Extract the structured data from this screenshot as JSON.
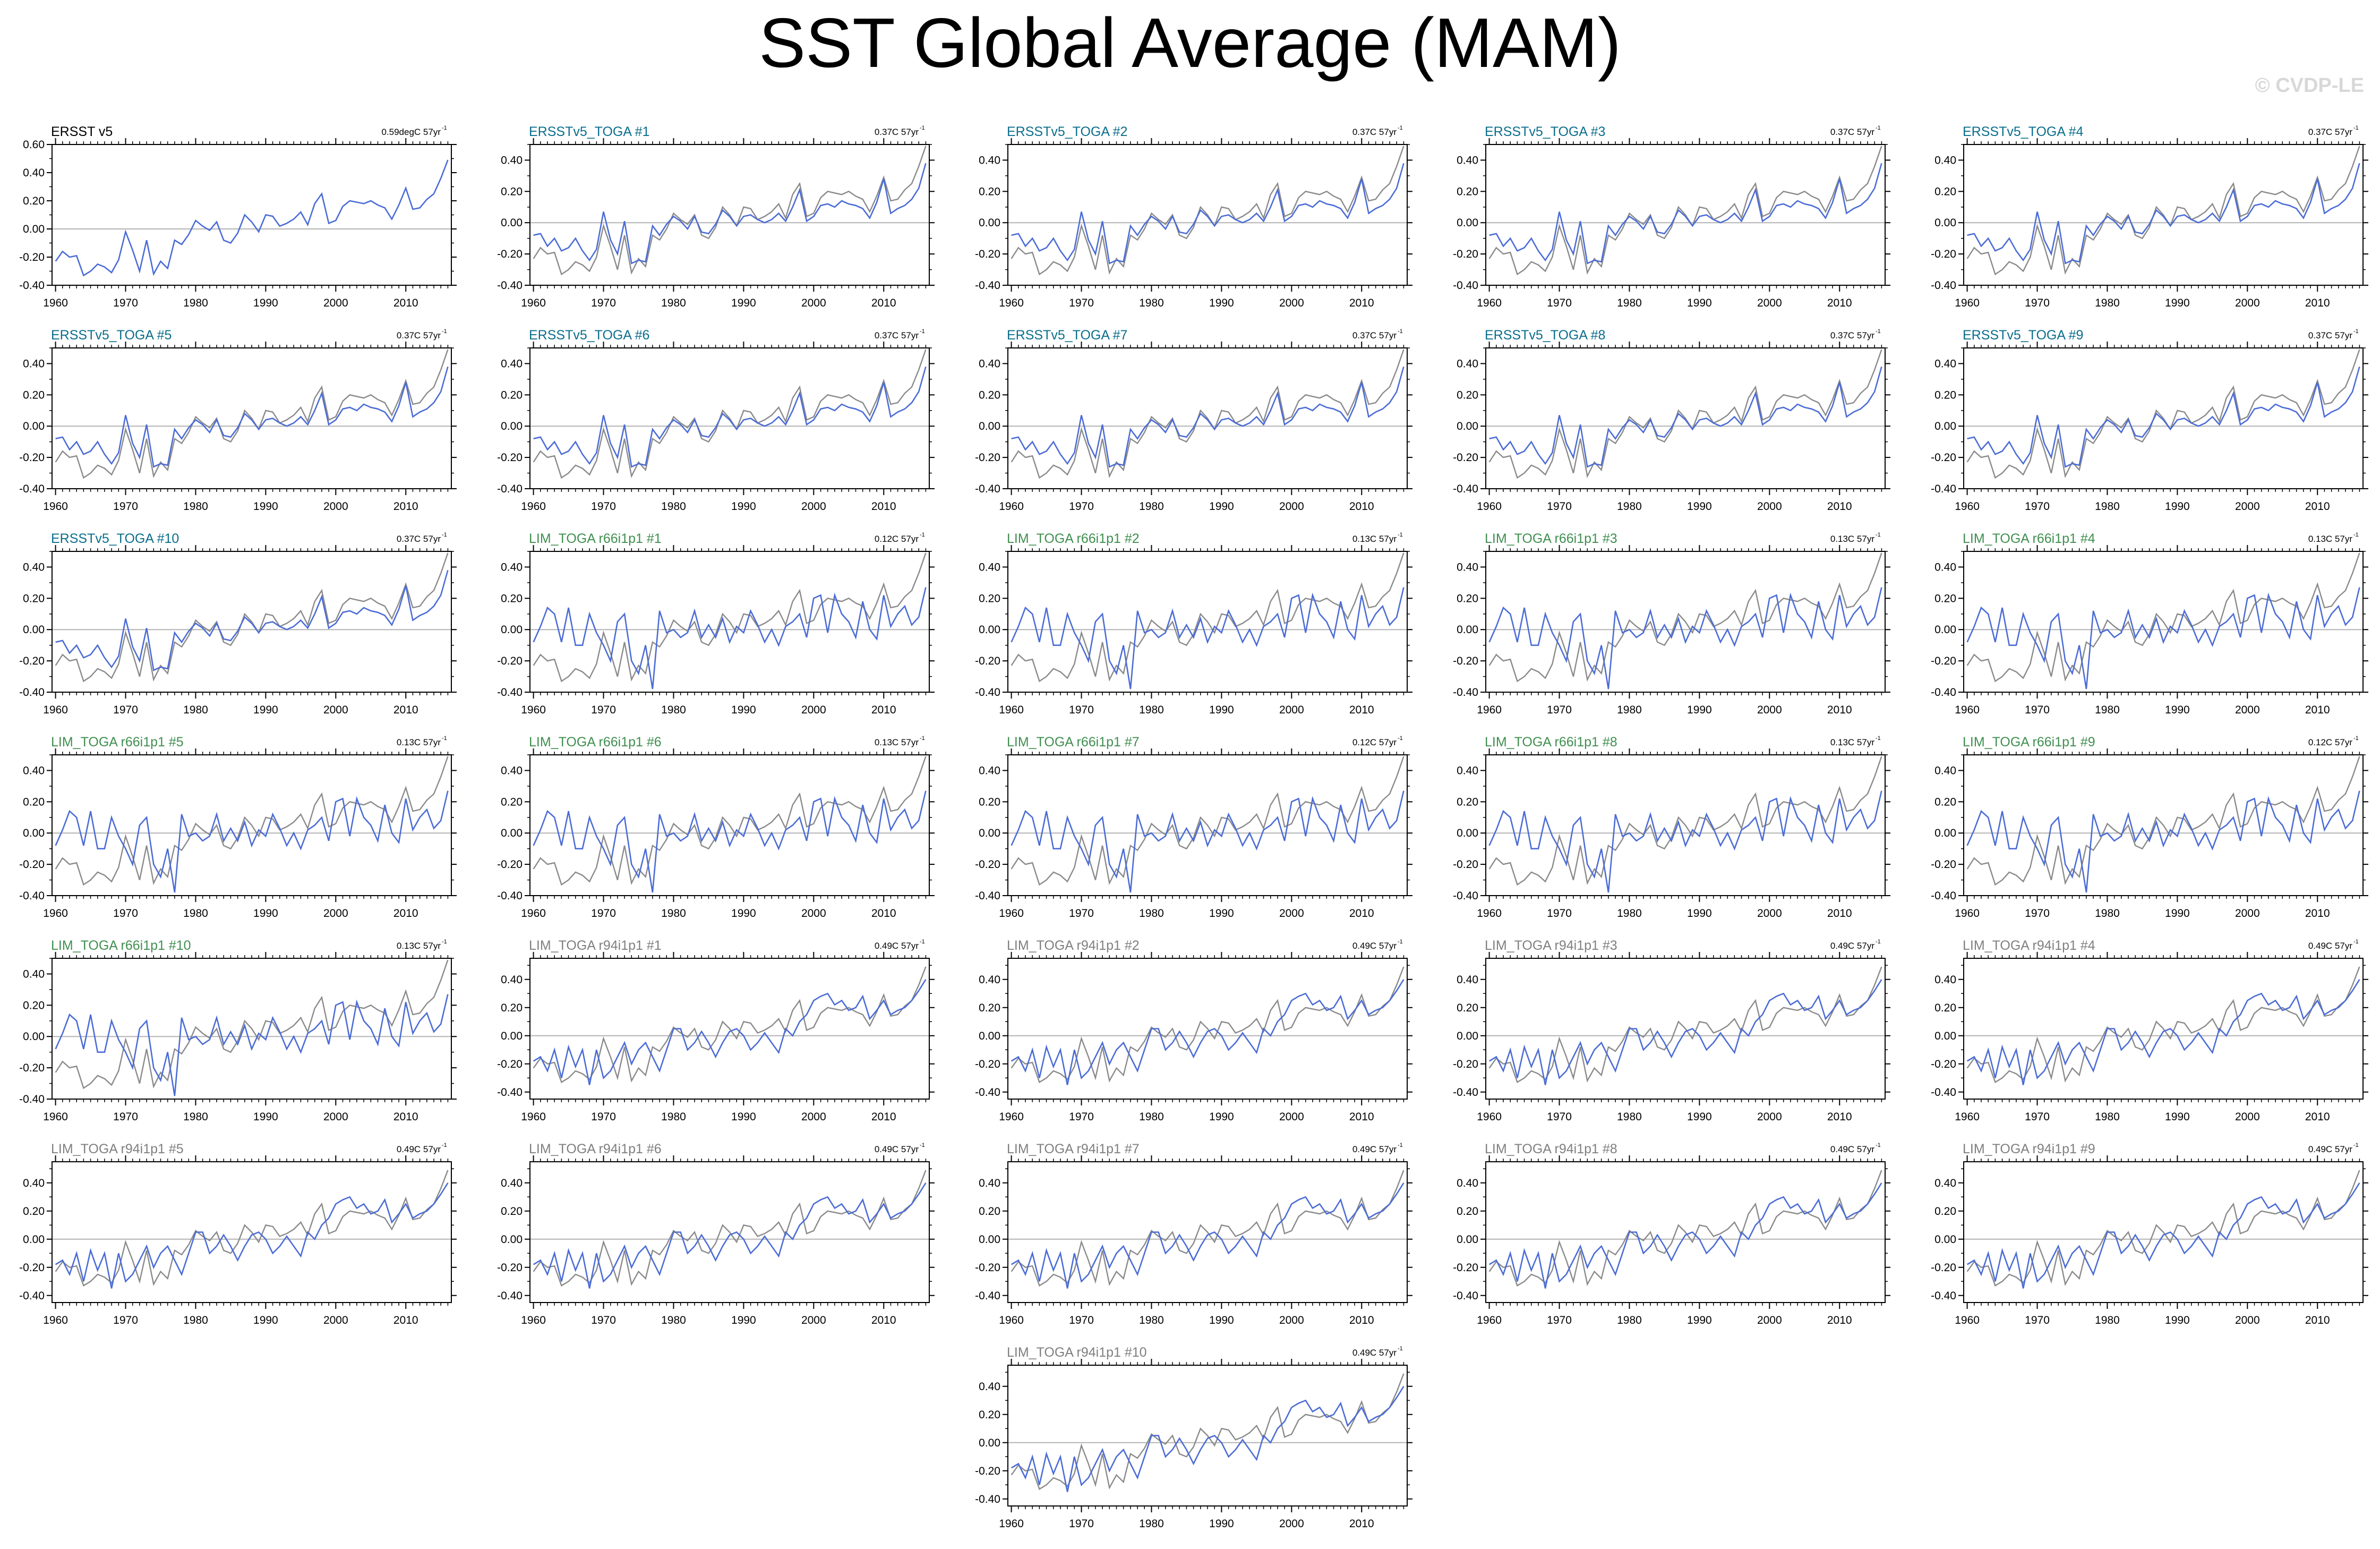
{
  "title": "SST Global Average (MAM)",
  "watermark": "© CVDP-LE",
  "colors": {
    "member_line": "#4b6cd6",
    "obs_overlay_line": "#8a8a8a",
    "obs_line": "#4b6cd6",
    "title_obs": "#000000",
    "title_ersst_toga": "#0a6e8c",
    "title_lim_r66": "#3f8f4f",
    "title_lim_r94": "#7f7f7f",
    "zero_line": "#b3b3b3",
    "axis": "#000000"
  },
  "chart_data": {
    "type": "line",
    "x": [
      1960,
      1961,
      1962,
      1963,
      1964,
      1965,
      1966,
      1967,
      1968,
      1969,
      1970,
      1971,
      1972,
      1973,
      1974,
      1975,
      1976,
      1977,
      1978,
      1979,
      1980,
      1981,
      1982,
      1983,
      1984,
      1985,
      1986,
      1987,
      1988,
      1989,
      1990,
      1991,
      1992,
      1993,
      1994,
      1995,
      1996,
      1997,
      1998,
      1999,
      2000,
      2001,
      2002,
      2003,
      2004,
      2005,
      2006,
      2007,
      2008,
      2009,
      2010,
      2011,
      2012,
      2013,
      2014,
      2015,
      2016
    ],
    "xticks": [
      "1960",
      "1970",
      "1980",
      "1990",
      "2000",
      "2010"
    ],
    "observed": {
      "name": "ERSST v5",
      "values": [
        -0.23,
        -0.16,
        -0.2,
        -0.19,
        -0.33,
        -0.3,
        -0.25,
        -0.27,
        -0.31,
        -0.22,
        -0.02,
        -0.15,
        -0.3,
        -0.08,
        -0.32,
        -0.23,
        -0.28,
        -0.08,
        -0.11,
        -0.04,
        0.06,
        0.02,
        -0.01,
        0.05,
        -0.08,
        -0.1,
        -0.03,
        0.1,
        0.05,
        -0.02,
        0.1,
        0.09,
        0.02,
        0.04,
        0.07,
        0.12,
        0.03,
        0.18,
        0.25,
        0.04,
        0.06,
        0.16,
        0.2,
        0.19,
        0.18,
        0.2,
        0.17,
        0.15,
        0.07,
        0.17,
        0.29,
        0.14,
        0.15,
        0.21,
        0.25,
        0.36,
        0.49
      ]
    },
    "panels": [
      {
        "label": "ERSST v5",
        "trend": "0.59degC 57yr",
        "group": "obs",
        "yticks": [
          "0.60",
          "0.40",
          "0.20",
          "0.00",
          "-0.20",
          "-0.40"
        ],
        "ylim": [
          -0.4,
          0.6
        ]
      },
      {
        "label": "ERSSTv5_TOGA #1",
        "trend": "0.37C 57yr",
        "group": "ersst_toga",
        "yticks": [
          "0.40",
          "0.20",
          "0.00",
          "-0.20",
          "-0.40"
        ],
        "ylim": [
          -0.4,
          0.5
        ]
      },
      {
        "label": "ERSSTv5_TOGA #2",
        "trend": "0.37C 57yr",
        "group": "ersst_toga",
        "yticks": [
          "0.40",
          "0.20",
          "0.00",
          "-0.20",
          "-0.40"
        ],
        "ylim": [
          -0.4,
          0.5
        ]
      },
      {
        "label": "ERSSTv5_TOGA #3",
        "trend": "0.37C 57yr",
        "group": "ersst_toga",
        "yticks": [
          "0.40",
          "0.20",
          "0.00",
          "-0.20",
          "-0.40"
        ],
        "ylim": [
          -0.4,
          0.5
        ]
      },
      {
        "label": "ERSSTv5_TOGA #4",
        "trend": "0.37C 57yr",
        "group": "ersst_toga",
        "yticks": [
          "0.40",
          "0.20",
          "0.00",
          "-0.20",
          "-0.40"
        ],
        "ylim": [
          -0.4,
          0.5
        ]
      },
      {
        "label": "ERSSTv5_TOGA #5",
        "trend": "0.37C 57yr",
        "group": "ersst_toga",
        "yticks": [
          "0.40",
          "0.20",
          "0.00",
          "-0.20",
          "-0.40"
        ],
        "ylim": [
          -0.4,
          0.5
        ]
      },
      {
        "label": "ERSSTv5_TOGA #6",
        "trend": "0.37C 57yr",
        "group": "ersst_toga",
        "yticks": [
          "0.40",
          "0.20",
          "0.00",
          "-0.20",
          "-0.40"
        ],
        "ylim": [
          -0.4,
          0.5
        ]
      },
      {
        "label": "ERSSTv5_TOGA #7",
        "trend": "0.37C 57yr",
        "group": "ersst_toga",
        "yticks": [
          "0.40",
          "0.20",
          "0.00",
          "-0.20",
          "-0.40"
        ],
        "ylim": [
          -0.4,
          0.5
        ]
      },
      {
        "label": "ERSSTv5_TOGA #8",
        "trend": "0.37C 57yr",
        "group": "ersst_toga",
        "yticks": [
          "0.40",
          "0.20",
          "0.00",
          "-0.20",
          "-0.40"
        ],
        "ylim": [
          -0.4,
          0.5
        ]
      },
      {
        "label": "ERSSTv5_TOGA #9",
        "trend": "0.37C 57yr",
        "group": "ersst_toga",
        "yticks": [
          "0.40",
          "0.20",
          "0.00",
          "-0.20",
          "-0.40"
        ],
        "ylim": [
          -0.4,
          0.5
        ]
      },
      {
        "label": "ERSSTv5_TOGA #10",
        "trend": "0.37C 57yr",
        "group": "ersst_toga",
        "yticks": [
          "0.40",
          "0.20",
          "0.00",
          "-0.20",
          "-0.40"
        ],
        "ylim": [
          -0.4,
          0.5
        ]
      },
      {
        "label": "LIM_TOGA r66i1p1 #1",
        "trend": "0.12C 57yr",
        "group": "lim_r66",
        "yticks": [
          "0.40",
          "0.20",
          "0.00",
          "-0.20",
          "-0.40"
        ],
        "ylim": [
          -0.4,
          0.5
        ]
      },
      {
        "label": "LIM_TOGA r66i1p1 #2",
        "trend": "0.13C 57yr",
        "group": "lim_r66",
        "yticks": [
          "0.40",
          "0.20",
          "0.00",
          "-0.20",
          "-0.40"
        ],
        "ylim": [
          -0.4,
          0.5
        ]
      },
      {
        "label": "LIM_TOGA r66i1p1 #3",
        "trend": "0.13C 57yr",
        "group": "lim_r66",
        "yticks": [
          "0.40",
          "0.20",
          "0.00",
          "-0.20",
          "-0.40"
        ],
        "ylim": [
          -0.4,
          0.5
        ]
      },
      {
        "label": "LIM_TOGA r66i1p1 #4",
        "trend": "0.13C 57yr",
        "group": "lim_r66",
        "yticks": [
          "0.40",
          "0.20",
          "0.00",
          "-0.20",
          "-0.40"
        ],
        "ylim": [
          -0.4,
          0.5
        ]
      },
      {
        "label": "LIM_TOGA r66i1p1 #5",
        "trend": "0.13C 57yr",
        "group": "lim_r66",
        "yticks": [
          "0.40",
          "0.20",
          "0.00",
          "-0.20",
          "-0.40"
        ],
        "ylim": [
          -0.4,
          0.5
        ]
      },
      {
        "label": "LIM_TOGA r66i1p1 #6",
        "trend": "0.13C 57yr",
        "group": "lim_r66",
        "yticks": [
          "0.40",
          "0.20",
          "0.00",
          "-0.20",
          "-0.40"
        ],
        "ylim": [
          -0.4,
          0.5
        ]
      },
      {
        "label": "LIM_TOGA r66i1p1 #7",
        "trend": "0.12C 57yr",
        "group": "lim_r66",
        "yticks": [
          "0.40",
          "0.20",
          "0.00",
          "-0.20",
          "-0.40"
        ],
        "ylim": [
          -0.4,
          0.5
        ]
      },
      {
        "label": "LIM_TOGA r66i1p1 #8",
        "trend": "0.13C 57yr",
        "group": "lim_r66",
        "yticks": [
          "0.40",
          "0.20",
          "0.00",
          "-0.20",
          "-0.40"
        ],
        "ylim": [
          -0.4,
          0.5
        ]
      },
      {
        "label": "LIM_TOGA r66i1p1 #9",
        "trend": "0.12C 57yr",
        "group": "lim_r66",
        "yticks": [
          "0.40",
          "0.20",
          "0.00",
          "-0.20",
          "-0.40"
        ],
        "ylim": [
          -0.4,
          0.5
        ]
      },
      {
        "label": "LIM_TOGA r66i1p1 #10",
        "trend": "0.13C 57yr",
        "group": "lim_r66",
        "yticks": [
          "0.40",
          "0.20",
          "0.00",
          "-0.20",
          "-0.40"
        ],
        "ylim": [
          -0.4,
          0.5
        ]
      },
      {
        "label": "LIM_TOGA r94i1p1 #1",
        "trend": "0.49C 57yr",
        "group": "lim_r94",
        "yticks": [
          "0.40",
          "0.20",
          "0.00",
          "-0.20",
          "-0.40"
        ],
        "ylim": [
          -0.45,
          0.55
        ]
      },
      {
        "label": "LIM_TOGA r94i1p1 #2",
        "trend": "0.49C 57yr",
        "group": "lim_r94",
        "yticks": [
          "0.40",
          "0.20",
          "0.00",
          "-0.20",
          "-0.40"
        ],
        "ylim": [
          -0.45,
          0.55
        ]
      },
      {
        "label": "LIM_TOGA r94i1p1 #3",
        "trend": "0.49C 57yr",
        "group": "lim_r94",
        "yticks": [
          "0.40",
          "0.20",
          "0.00",
          "-0.20",
          "-0.40"
        ],
        "ylim": [
          -0.45,
          0.55
        ]
      },
      {
        "label": "LIM_TOGA r94i1p1 #4",
        "trend": "0.49C 57yr",
        "group": "lim_r94",
        "yticks": [
          "0.40",
          "0.20",
          "0.00",
          "-0.20",
          "-0.40"
        ],
        "ylim": [
          -0.45,
          0.55
        ]
      },
      {
        "label": "LIM_TOGA r94i1p1 #5",
        "trend": "0.49C 57yr",
        "group": "lim_r94",
        "yticks": [
          "0.40",
          "0.20",
          "0.00",
          "-0.20",
          "-0.40"
        ],
        "ylim": [
          -0.45,
          0.55
        ]
      },
      {
        "label": "LIM_TOGA r94i1p1 #6",
        "trend": "0.49C 57yr",
        "group": "lim_r94",
        "yticks": [
          "0.40",
          "0.20",
          "0.00",
          "-0.20",
          "-0.40"
        ],
        "ylim": [
          -0.45,
          0.55
        ]
      },
      {
        "label": "LIM_TOGA r94i1p1 #7",
        "trend": "0.49C 57yr",
        "group": "lim_r94",
        "yticks": [
          "0.40",
          "0.20",
          "0.00",
          "-0.20",
          "-0.40"
        ],
        "ylim": [
          -0.45,
          0.55
        ]
      },
      {
        "label": "LIM_TOGA r94i1p1 #8",
        "trend": "0.49C 57yr",
        "group": "lim_r94",
        "yticks": [
          "0.40",
          "0.20",
          "0.00",
          "-0.20",
          "-0.40"
        ],
        "ylim": [
          -0.45,
          0.55
        ]
      },
      {
        "label": "LIM_TOGA r94i1p1 #9",
        "trend": "0.49C 57yr",
        "group": "lim_r94",
        "yticks": [
          "0.40",
          "0.20",
          "0.00",
          "-0.20",
          "-0.40"
        ],
        "ylim": [
          -0.45,
          0.55
        ]
      },
      {
        "label": "LIM_TOGA r94i1p1 #10",
        "trend": "0.49C 57yr",
        "group": "lim_r94",
        "yticks": [
          "0.40",
          "0.20",
          "0.00",
          "-0.20",
          "-0.40"
        ],
        "ylim": [
          -0.45,
          0.55
        ]
      }
    ],
    "series_by_group": {
      "ersst_toga": [
        -0.08,
        -0.07,
        -0.15,
        -0.1,
        -0.18,
        -0.16,
        -0.1,
        -0.18,
        -0.24,
        -0.17,
        0.07,
        -0.11,
        -0.2,
        0.01,
        -0.26,
        -0.24,
        -0.25,
        -0.02,
        -0.08,
        -0.01,
        0.04,
        0.01,
        -0.04,
        0.04,
        -0.06,
        -0.07,
        -0.01,
        0.08,
        0.04,
        -0.02,
        0.04,
        0.05,
        0.02,
        0.0,
        0.02,
        0.06,
        0.01,
        0.1,
        0.21,
        0.01,
        0.04,
        0.11,
        0.12,
        0.1,
        0.14,
        0.12,
        0.11,
        0.09,
        0.03,
        0.13,
        0.28,
        0.06,
        0.09,
        0.11,
        0.15,
        0.22,
        0.38
      ],
      "lim_r66": [
        -0.08,
        0.02,
        0.14,
        0.1,
        -0.08,
        0.14,
        -0.1,
        -0.1,
        0.1,
        -0.02,
        -0.1,
        -0.2,
        0.05,
        0.1,
        -0.2,
        -0.28,
        -0.1,
        -0.38,
        0.12,
        -0.02,
        0.0,
        -0.05,
        -0.02,
        0.12,
        -0.05,
        0.03,
        -0.05,
        0.07,
        -0.08,
        0.02,
        -0.02,
        0.12,
        0.03,
        -0.08,
        0.0,
        -0.1,
        0.02,
        0.05,
        0.1,
        -0.05,
        0.2,
        0.22,
        -0.02,
        0.22,
        0.1,
        0.05,
        -0.05,
        0.18,
        0.0,
        -0.06,
        0.22,
        0.02,
        0.1,
        0.15,
        0.03,
        0.08,
        0.27
      ],
      "lim_r94": [
        -0.18,
        -0.15,
        -0.25,
        -0.1,
        -0.3,
        -0.08,
        -0.22,
        -0.1,
        -0.35,
        -0.1,
        -0.3,
        -0.25,
        -0.15,
        -0.05,
        -0.2,
        -0.1,
        -0.05,
        -0.15,
        -0.25,
        -0.1,
        0.05,
        0.05,
        -0.1,
        -0.05,
        0.03,
        -0.05,
        -0.15,
        -0.05,
        0.03,
        0.05,
        0.0,
        -0.1,
        -0.05,
        0.02,
        -0.05,
        -0.12,
        0.05,
        0.0,
        0.1,
        0.15,
        0.25,
        0.28,
        0.3,
        0.22,
        0.25,
        0.18,
        0.2,
        0.28,
        0.12,
        0.18,
        0.25,
        0.15,
        0.18,
        0.2,
        0.25,
        0.32,
        0.4
      ]
    }
  }
}
